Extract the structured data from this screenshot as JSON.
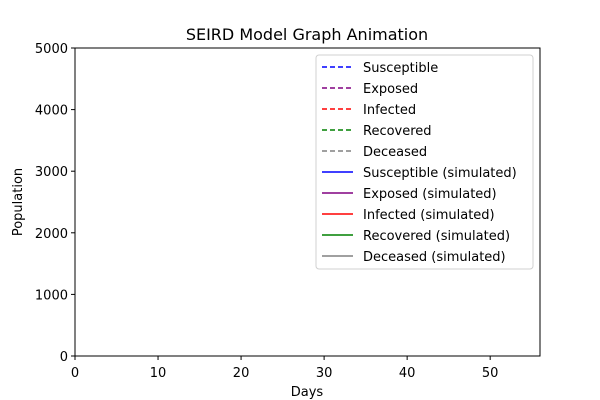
{
  "chart_data": {
    "type": "line",
    "title": "SEIRD Model Graph Animation",
    "xlabel": "Days",
    "ylabel": "Population",
    "xlim": [
      0,
      56
    ],
    "ylim": [
      0,
      5000
    ],
    "x_ticks": [
      0,
      10,
      20,
      30,
      40,
      50
    ],
    "y_ticks": [
      0,
      1000,
      2000,
      3000,
      4000,
      5000
    ],
    "grid": false,
    "legend_position": "top-right",
    "series": [
      {
        "name": "Susceptible",
        "color": "#0000ff",
        "style": "dashed",
        "x": [],
        "y": []
      },
      {
        "name": "Exposed",
        "color": "#800080",
        "style": "dashed",
        "x": [],
        "y": []
      },
      {
        "name": "Infected",
        "color": "#ff0000",
        "style": "dashed",
        "x": [],
        "y": []
      },
      {
        "name": "Recovered",
        "color": "#008000",
        "style": "dashed",
        "x": [],
        "y": []
      },
      {
        "name": "Deceased",
        "color": "#808080",
        "style": "dashed",
        "x": [],
        "y": []
      },
      {
        "name": "Susceptible (simulated)",
        "color": "#0000ff",
        "style": "solid",
        "x": [],
        "y": []
      },
      {
        "name": "Exposed (simulated)",
        "color": "#800080",
        "style": "solid",
        "x": [],
        "y": []
      },
      {
        "name": "Infected (simulated)",
        "color": "#ff0000",
        "style": "solid",
        "x": [],
        "y": []
      },
      {
        "name": "Recovered (simulated)",
        "color": "#008000",
        "style": "solid",
        "x": [],
        "y": []
      },
      {
        "name": "Deceased (simulated)",
        "color": "#808080",
        "style": "solid",
        "x": [],
        "y": []
      }
    ]
  }
}
